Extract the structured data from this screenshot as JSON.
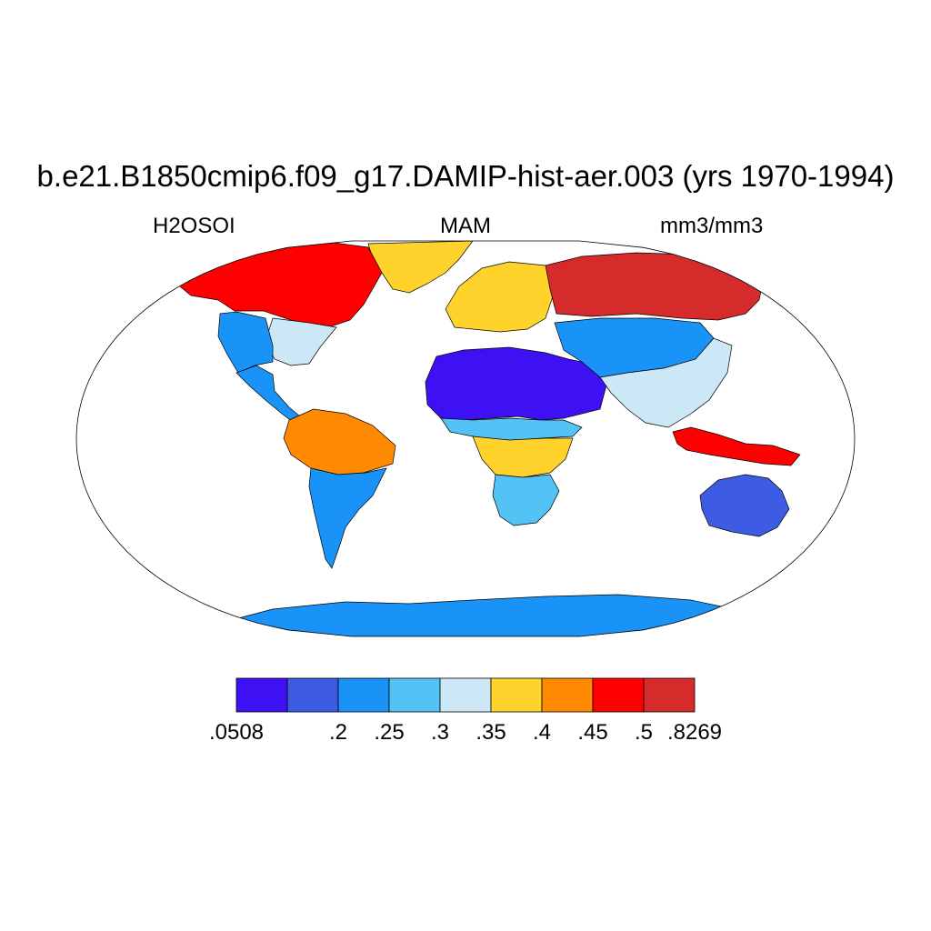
{
  "title": "b.e21.B1850cmip6.f09_g17.DAMIP-hist-aer.003 (yrs 1970-1994)",
  "variable": "H2OSOI",
  "season": "MAM",
  "units": "mm3/mm3",
  "projection": "Robinson",
  "colorbar": {
    "colors": [
      "#3e11f5",
      "#3d5ce3",
      "#1a93f8",
      "#53c2f4",
      "#cce7f6",
      "#ffd32b",
      "#ff8900",
      "#ff0000",
      "#d52b2b"
    ],
    "labels": [
      ".0508",
      "",
      ".2",
      ".25",
      ".3",
      ".35",
      ".4",
      ".45",
      ".5",
      ".8269"
    ]
  },
  "regions": [
    {
      "name": "Greenland",
      "level": 5
    },
    {
      "name": "Canada / Arctic North America",
      "level": 7
    },
    {
      "name": "Eastern North America",
      "level": 4
    },
    {
      "name": "Western United States",
      "level": 2
    },
    {
      "name": "Mexico / Central America",
      "level": 2
    },
    {
      "name": "Amazon Basin",
      "level": 6
    },
    {
      "name": "Andes / Patagonia",
      "level": 2
    },
    {
      "name": "Europe",
      "level": 5
    },
    {
      "name": "Sahara / Arabia",
      "level": 0
    },
    {
      "name": "Sahel",
      "level": 3
    },
    {
      "name": "Central Africa",
      "level": 5
    },
    {
      "name": "Southern Africa",
      "level": 3
    },
    {
      "name": "Central Asia",
      "level": 2
    },
    {
      "name": "Siberia",
      "level": 8
    },
    {
      "name": "South / East Asia",
      "level": 4
    },
    {
      "name": "Maritime Continent",
      "level": 7
    },
    {
      "name": "Australia",
      "level": 1
    },
    {
      "name": "Antarctica",
      "level": 2
    }
  ]
}
